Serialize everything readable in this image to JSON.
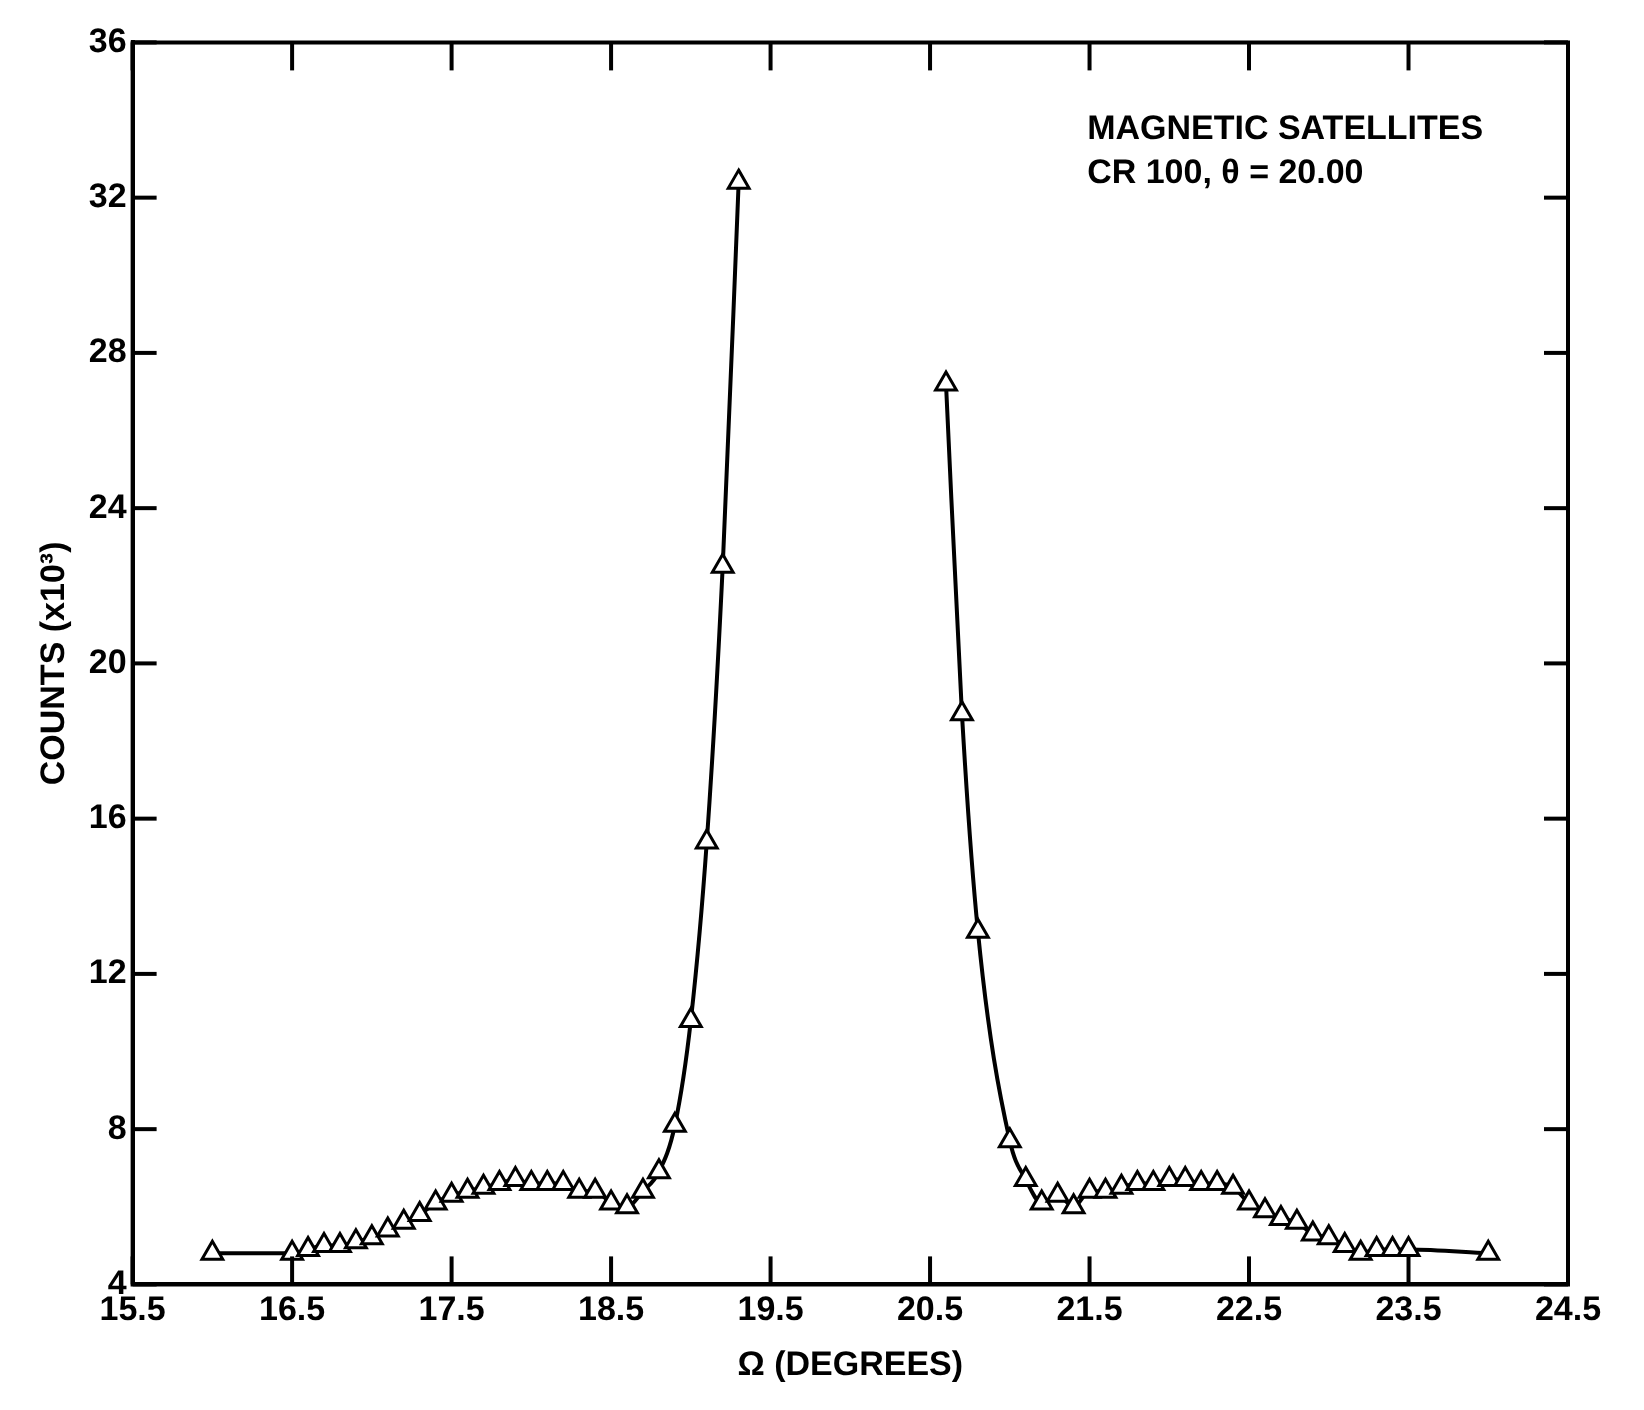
{
  "chart_data": {
    "type": "line",
    "xlabel": "Ω (DEGREES)",
    "ylabel": "COUNTS (x10³)",
    "annotations": [
      "MAGNETIC SATELLITES",
      "CR 100, θ = 20.00"
    ],
    "x": [
      16.0,
      16.5,
      16.6,
      16.7,
      16.8,
      16.9,
      17.0,
      17.1,
      17.2,
      17.3,
      17.4,
      17.5,
      17.6,
      17.7,
      17.8,
      17.9,
      18.0,
      18.1,
      18.2,
      18.3,
      18.4,
      18.5,
      18.6,
      18.7,
      18.8,
      18.9,
      19.0,
      19.1,
      19.2,
      19.3,
      19.95,
      20.6,
      20.7,
      20.8,
      21.0,
      21.1,
      21.2,
      21.3,
      21.4,
      21.5,
      21.6,
      21.7,
      21.8,
      21.9,
      22.0,
      22.1,
      22.2,
      22.3,
      22.4,
      22.5,
      22.6,
      22.7,
      22.8,
      22.9,
      23.0,
      23.1,
      23.2,
      23.3,
      23.4,
      23.5,
      24.0
    ],
    "series": [
      {
        "color": "#000000",
        "values": [
          4.8,
          4.8,
          4.9,
          5.0,
          5.0,
          5.1,
          5.2,
          5.4,
          5.6,
          5.8,
          6.1,
          6.3,
          6.4,
          6.5,
          6.6,
          6.7,
          6.6,
          6.6,
          6.6,
          6.4,
          6.4,
          6.1,
          6.0,
          6.4,
          6.9,
          8.1,
          10.8,
          15.4,
          22.5,
          32.4,
          null,
          27.2,
          18.7,
          13.1,
          7.7,
          6.7,
          6.1,
          6.3,
          6.0,
          6.4,
          6.4,
          6.5,
          6.6,
          6.6,
          6.7,
          6.7,
          6.6,
          6.6,
          6.5,
          6.1,
          5.9,
          5.7,
          5.6,
          5.3,
          5.2,
          5.0,
          4.8,
          4.9,
          4.9,
          4.9,
          4.8
        ]
      }
    ],
    "xlim": [
      15.5,
      24.5
    ],
    "xticks": [
      15.5,
      16.5,
      17.5,
      18.5,
      19.5,
      20.5,
      21.5,
      22.5,
      23.5,
      24.5
    ],
    "ylim": [
      4,
      36
    ],
    "yticks": [
      4,
      8,
      12,
      16,
      20,
      24,
      28,
      32,
      36
    ],
    "grid": false,
    "legend": false,
    "marker": "triangle",
    "line_style": "solid"
  }
}
